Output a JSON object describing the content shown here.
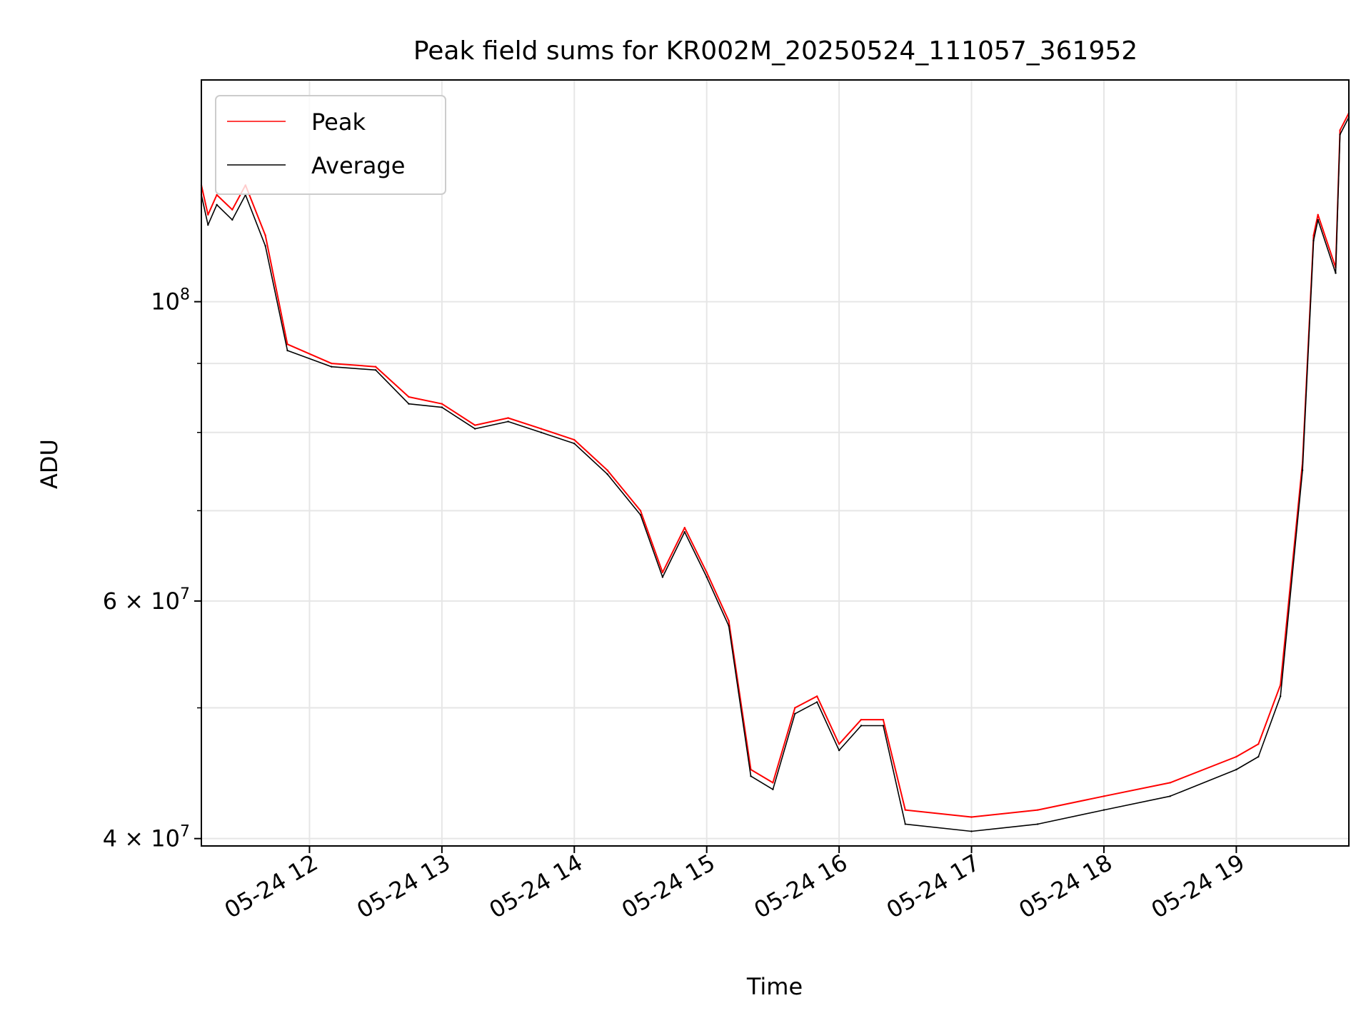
{
  "chart_data": {
    "type": "line",
    "title": "Peak field sums for KR002M_20250524_111057_361952",
    "xlabel": "Time",
    "ylabel": "ADU",
    "yscale": "log",
    "ylim": [
      39500000,
      146000000
    ],
    "xlim": [
      "2025-05-24 11:11",
      "2025-05-24 19:51"
    ],
    "grid": true,
    "legend_position": "top-left",
    "x_ticks": [
      "05-24 12",
      "05-24 13",
      "05-24 14",
      "05-24 15",
      "05-24 16",
      "05-24 17",
      "05-24 18",
      "05-24 19"
    ],
    "y_ticks": [
      {
        "value": 40000000,
        "base": "4 × 10",
        "exp": "7"
      },
      {
        "value": 60000000,
        "base": "6 × 10",
        "exp": "7"
      },
      {
        "value": 100000000,
        "base": "10",
        "exp": "8"
      }
    ],
    "x": [
      "2025-05-24 11:11",
      "2025-05-24 11:14",
      "2025-05-24 11:18",
      "2025-05-24 11:25",
      "2025-05-24 11:31",
      "2025-05-24 11:40",
      "2025-05-24 11:50",
      "2025-05-24 12:10",
      "2025-05-24 12:30",
      "2025-05-24 12:45",
      "2025-05-24 13:00",
      "2025-05-24 13:15",
      "2025-05-24 13:30",
      "2025-05-24 13:45",
      "2025-05-24 14:00",
      "2025-05-24 14:15",
      "2025-05-24 14:30",
      "2025-05-24 14:40",
      "2025-05-24 14:50",
      "2025-05-24 15:00",
      "2025-05-24 15:10",
      "2025-05-24 15:20",
      "2025-05-24 15:30",
      "2025-05-24 15:40",
      "2025-05-24 15:50",
      "2025-05-24 16:00",
      "2025-05-24 16:10",
      "2025-05-24 16:20",
      "2025-05-24 16:30",
      "2025-05-24 17:00",
      "2025-05-24 17:30",
      "2025-05-24 18:00",
      "2025-05-24 18:30",
      "2025-05-24 19:00",
      "2025-05-24 19:10",
      "2025-05-24 19:20",
      "2025-05-24 19:30",
      "2025-05-24 19:35",
      "2025-05-24 19:37",
      "2025-05-24 19:45",
      "2025-05-24 19:47",
      "2025-05-24 19:51"
    ],
    "series": [
      {
        "name": "Peak",
        "color": "#ff0000",
        "values": [
          122000000,
          116000000,
          120000000,
          117000000,
          122000000,
          112000000,
          93000000,
          90000000,
          89500000,
          85000000,
          84000000,
          81000000,
          82000000,
          80500000,
          79000000,
          75000000,
          70000000,
          63000000,
          68000000,
          63000000,
          58000000,
          45000000,
          44000000,
          50000000,
          51000000,
          47000000,
          49000000,
          49000000,
          42000000,
          41500000,
          42000000,
          43000000,
          44000000,
          46000000,
          47000000,
          52000000,
          76000000,
          112000000,
          116000000,
          106000000,
          134000000,
          138000000
        ]
      },
      {
        "name": "Average",
        "color": "#000000",
        "values": [
          120000000,
          114000000,
          118000000,
          115000000,
          120000000,
          110000000,
          92000000,
          89500000,
          89000000,
          84000000,
          83500000,
          80500000,
          81500000,
          80000000,
          78500000,
          74500000,
          69500000,
          62500000,
          67500000,
          62500000,
          57500000,
          44500000,
          43500000,
          49500000,
          50500000,
          46500000,
          48500000,
          48500000,
          41000000,
          40500000,
          41000000,
          42000000,
          43000000,
          45000000,
          46000000,
          51000000,
          75000000,
          111000000,
          115000000,
          105000000,
          133000000,
          137000000
        ]
      }
    ]
  }
}
